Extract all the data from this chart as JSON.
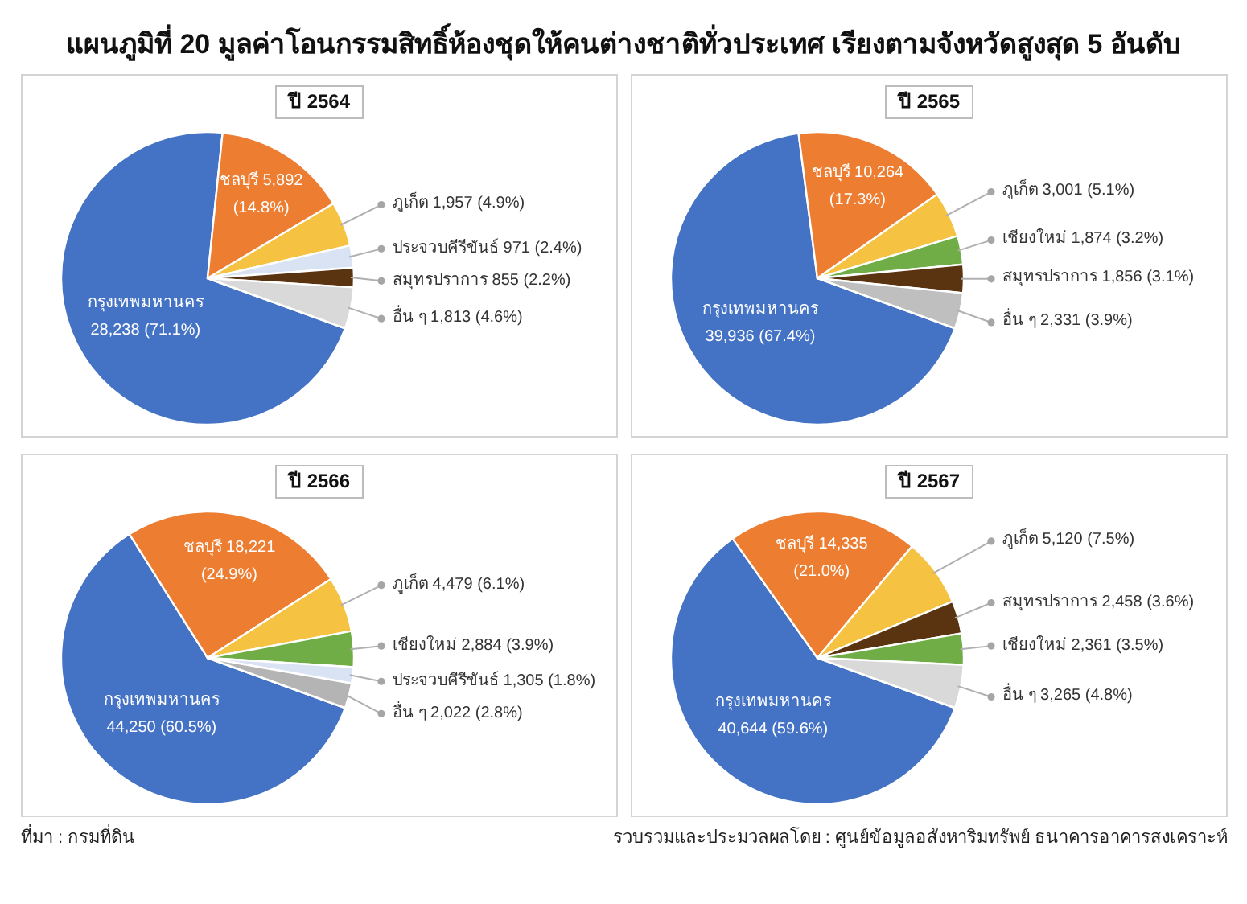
{
  "chart_data": [
    {
      "type": "other",
      "title": "แผนภูมิที่ 20 มูลค่าโอนกรรมสิทธิ์ห้องชุดให้คนต่างชาติทั่วประเทศ เรียงตามจังหวัดสูงสุด 5 อันดับ"
    },
    {
      "type": "pie",
      "title": "ปี 2564",
      "categories": [
        "กรุงเทพมหานคร",
        "ชลบุรี",
        "ภูเก็ต",
        "ประจวบคีรีขันธ์",
        "สมุทรปราการ",
        "อื่น ๆ"
      ],
      "values": [
        28238,
        5892,
        1957,
        971,
        855,
        1813
      ],
      "value_labels": [
        "28,238 (71.1%)",
        "5,892 (14.8%)",
        "1,957 (4.9%)",
        "971 (2.4%)",
        "855 (2.2%)",
        "1,813 (4.6%)"
      ],
      "colors": [
        "#4472c4",
        "#ed7d31",
        "#f5c242",
        "#dae3f3",
        "#5a3410",
        "#d9d9d9"
      ]
    },
    {
      "type": "pie",
      "title": "ปี 2565",
      "categories": [
        "กรุงเทพมหานคร",
        "ชลบุรี",
        "ภูเก็ต",
        "เชียงใหม่",
        "สมุทรปราการ",
        "อื่น ๆ"
      ],
      "values": [
        39936,
        10264,
        3001,
        1874,
        1856,
        2331
      ],
      "value_labels": [
        "39,936 (67.4%)",
        "10,264 (17.3%)",
        "3,001 (5.1%)",
        "1,874 (3.2%)",
        "1,856 (3.1%)",
        "2,331 (3.9%)"
      ],
      "colors": [
        "#4472c4",
        "#ed7d31",
        "#f5c242",
        "#70ad47",
        "#5a3410",
        "#bfbfbf"
      ]
    },
    {
      "type": "pie",
      "title": "ปี 2566",
      "categories": [
        "กรุงเทพมหานคร",
        "ชลบุรี",
        "ภูเก็ต",
        "เชียงใหม่",
        "ประจวบคีรีขันธ์",
        "อื่น ๆ"
      ],
      "values": [
        44250,
        18221,
        4479,
        2884,
        1305,
        2022
      ],
      "value_labels": [
        "44,250 (60.5%)",
        "18,221 (24.9%)",
        "4,479 (6.1%)",
        "2,884 (3.9%)",
        "1,305 (1.8%)",
        "2,022 (2.8%)"
      ],
      "colors": [
        "#4472c4",
        "#ed7d31",
        "#f5c242",
        "#70ad47",
        "#dae3f3",
        "#b4b4b4"
      ]
    },
    {
      "type": "pie",
      "title": "ปี 2567",
      "categories": [
        "กรุงเทพมหานคร",
        "ชลบุรี",
        "ภูเก็ต",
        "สมุทรปราการ",
        "เชียงใหม่",
        "อื่น ๆ"
      ],
      "values": [
        40644,
        14335,
        5120,
        2458,
        2361,
        3265
      ],
      "value_labels": [
        "40,644 (59.6%)",
        "14,335 (21.0%)",
        "5,120 (7.5%)",
        "2,458 (3.6%)",
        "2,361 (3.5%)",
        "3,265 (4.8%)"
      ],
      "colors": [
        "#4472c4",
        "#ed7d31",
        "#f5c242",
        "#5a3410",
        "#70ad47",
        "#d9d9d9"
      ]
    },
    {
      "type": "other",
      "annotations": [
        "ที่มา : กรมที่ดิน",
        "รวบรวมและประมวลผลโดย : ศูนย์ข้อมูลอสังหาริมทรัพย์ ธนาคารอาคารสงเคราะห์"
      ]
    }
  ]
}
